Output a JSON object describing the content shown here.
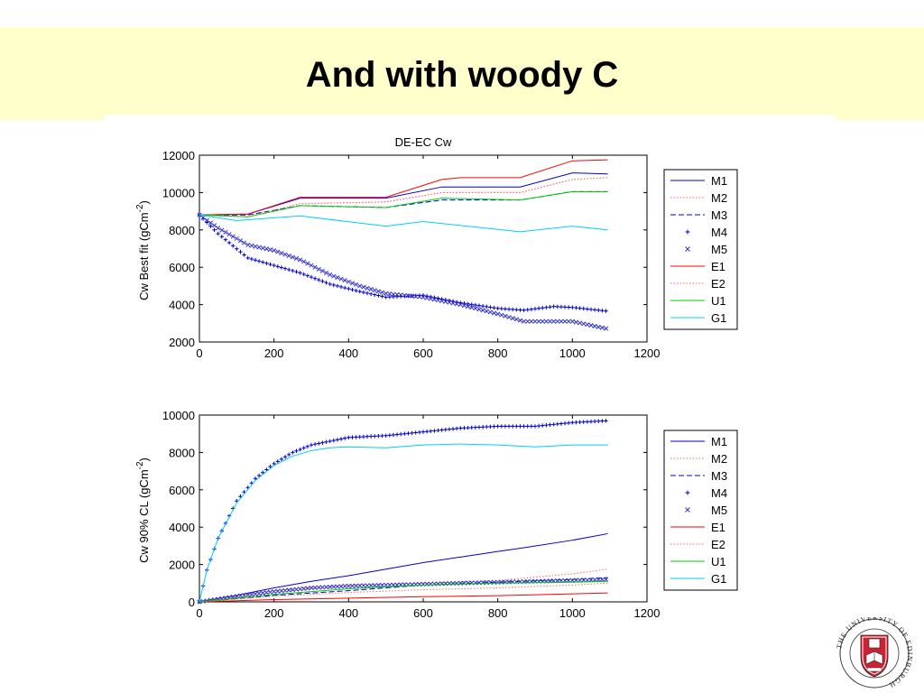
{
  "slide": {
    "title": "And with woody C"
  },
  "logo": {
    "text": "THE UNIVERSITY OF EDINBURGH"
  },
  "colors": {
    "banner": "#ffffcc",
    "M": "#0000cc",
    "E": "#ff0000",
    "U": "#00cc00",
    "G": "#00ccff"
  },
  "chart_data": [
    {
      "type": "line",
      "title": "DE-EC  Cw",
      "ylabel": "Cw     Best fit (gCm-2)",
      "xlim": [
        0,
        1200
      ],
      "ylim": [
        2000,
        12000
      ],
      "xticks": [
        0,
        200,
        400,
        600,
        800,
        1000,
        1200
      ],
      "yticks": [
        2000,
        4000,
        6000,
        8000,
        10000,
        12000
      ],
      "grid": false,
      "legend_position": "outside-right",
      "series": [
        {
          "name": "M1",
          "color": "#0000cc",
          "style": "solid",
          "x": [
            0,
            130,
            270,
            500,
            650,
            860,
            1000,
            1095
          ],
          "y": [
            8800,
            8850,
            9700,
            9700,
            10300,
            10300,
            11050,
            11000
          ]
        },
        {
          "name": "M2",
          "color": "#ff6666",
          "style": "dotted",
          "x": [
            0,
            130,
            270,
            500,
            650,
            860,
            1000,
            1095
          ],
          "y": [
            8800,
            8700,
            9400,
            9500,
            10000,
            10000,
            10700,
            10800
          ]
        },
        {
          "name": "M3",
          "color": "#0000cc",
          "style": "dashed",
          "x": [
            0,
            130,
            270,
            500,
            650,
            860,
            1000,
            1095
          ],
          "y": [
            8800,
            8800,
            9300,
            9200,
            9600,
            9600,
            10050,
            10050
          ]
        },
        {
          "name": "M4",
          "color": "#0000cc",
          "style": "plus",
          "x": [
            0,
            50,
            130,
            200,
            270,
            350,
            430,
            500,
            600,
            700,
            800,
            870,
            950,
            1000,
            1095
          ],
          "y": [
            8800,
            7800,
            6500,
            6100,
            5700,
            5100,
            4700,
            4400,
            4500,
            4100,
            3800,
            3700,
            3900,
            3850,
            3650
          ]
        },
        {
          "name": "M5",
          "color": "#3333cc",
          "style": "cross",
          "x": [
            0,
            50,
            130,
            200,
            270,
            350,
            430,
            500,
            600,
            700,
            800,
            870,
            950,
            1000,
            1095
          ],
          "y": [
            8800,
            8100,
            7200,
            6900,
            6400,
            5600,
            5000,
            4600,
            4400,
            4000,
            3500,
            3100,
            3100,
            3100,
            2700
          ]
        },
        {
          "name": "E1",
          "color": "#ff0000",
          "style": "solid",
          "x": [
            0,
            130,
            270,
            500,
            650,
            700,
            860,
            1000,
            1095
          ],
          "y": [
            8800,
            8850,
            9750,
            9750,
            10700,
            10800,
            10800,
            11700,
            11750
          ]
        },
        {
          "name": "E2",
          "color": "#ff6666",
          "style": "dotted",
          "x": [
            0,
            130,
            270,
            500,
            650,
            860,
            1000,
            1095
          ],
          "y": [
            8800,
            8700,
            9400,
            9500,
            10000,
            10000,
            10700,
            10800
          ]
        },
        {
          "name": "U1",
          "color": "#00cc00",
          "style": "solid",
          "x": [
            0,
            130,
            270,
            500,
            650,
            860,
            1000,
            1095
          ],
          "y": [
            8800,
            8700,
            9300,
            9200,
            9700,
            9600,
            10050,
            10050
          ]
        },
        {
          "name": "G1",
          "color": "#00ccff",
          "style": "solid",
          "x": [
            0,
            100,
            270,
            500,
            600,
            860,
            1000,
            1095
          ],
          "y": [
            8800,
            8500,
            8750,
            8200,
            8450,
            7900,
            8200,
            8000
          ]
        }
      ]
    },
    {
      "type": "line",
      "title": "",
      "ylabel": "Cw     90% CL (gCm-2)",
      "xlim": [
        0,
        1200
      ],
      "ylim": [
        0,
        10000
      ],
      "xticks": [
        0,
        200,
        400,
        600,
        800,
        1000,
        1200
      ],
      "yticks": [
        0,
        2000,
        4000,
        6000,
        8000,
        10000
      ],
      "grid": false,
      "legend_position": "outside-right",
      "series": [
        {
          "name": "M1",
          "color": "#0000cc",
          "style": "solid",
          "x": [
            0,
            100,
            200,
            300,
            400,
            500,
            600,
            700,
            800,
            870,
            1000,
            1095
          ],
          "y": [
            0,
            350,
            750,
            1100,
            1400,
            1750,
            2100,
            2400,
            2700,
            2900,
            3300,
            3650
          ]
        },
        {
          "name": "M2",
          "color": "#ff6666",
          "style": "dotted",
          "x": [
            0,
            200,
            400,
            600,
            800,
            1000,
            1095
          ],
          "y": [
            0,
            600,
            900,
            1000,
            1150,
            1500,
            1750
          ]
        },
        {
          "name": "M3",
          "color": "#0000cc",
          "style": "dashed",
          "x": [
            0,
            200,
            400,
            600,
            800,
            1000,
            1095
          ],
          "y": [
            0,
            350,
            600,
            900,
            1050,
            1200,
            1300
          ]
        },
        {
          "name": "M4",
          "color": "#0000cc",
          "style": "plus",
          "x": [
            0,
            20,
            50,
            100,
            150,
            200,
            250,
            300,
            400,
            500,
            600,
            700,
            800,
            900,
            1000,
            1095
          ],
          "y": [
            0,
            1700,
            3400,
            5400,
            6600,
            7400,
            8000,
            8400,
            8800,
            8900,
            9100,
            9300,
            9400,
            9400,
            9600,
            9700
          ]
        },
        {
          "name": "M5",
          "color": "#3333cc",
          "style": "cross",
          "x": [
            0,
            100,
            200,
            300,
            400,
            500,
            600,
            700,
            800,
            900,
            1000,
            1095
          ],
          "y": [
            0,
            300,
            550,
            750,
            850,
            900,
            950,
            1000,
            1050,
            1100,
            1150,
            1200
          ]
        },
        {
          "name": "E1",
          "color": "#ff0000",
          "style": "solid",
          "x": [
            0,
            200,
            400,
            600,
            800,
            1000,
            1095
          ],
          "y": [
            0,
            120,
            200,
            280,
            330,
            430,
            480
          ]
        },
        {
          "name": "E2",
          "color": "#ff6666",
          "style": "dotted",
          "x": [
            0,
            200,
            400,
            600,
            800,
            1000,
            1095
          ],
          "y": [
            0,
            300,
            500,
            650,
            750,
            900,
            1000
          ]
        },
        {
          "name": "U1",
          "color": "#00cc00",
          "style": "solid",
          "x": [
            0,
            200,
            400,
            600,
            800,
            1000,
            1095
          ],
          "y": [
            0,
            400,
            700,
            900,
            1000,
            1050,
            1100
          ]
        },
        {
          "name": "G1",
          "color": "#00ccff",
          "style": "solid",
          "x": [
            0,
            20,
            50,
            100,
            150,
            200,
            250,
            300,
            350,
            400,
            500,
            600,
            700,
            800,
            900,
            1000,
            1095
          ],
          "y": [
            0,
            1700,
            3400,
            5300,
            6500,
            7300,
            7800,
            8100,
            8250,
            8300,
            8250,
            8400,
            8450,
            8400,
            8300,
            8400,
            8400
          ]
        }
      ]
    }
  ]
}
